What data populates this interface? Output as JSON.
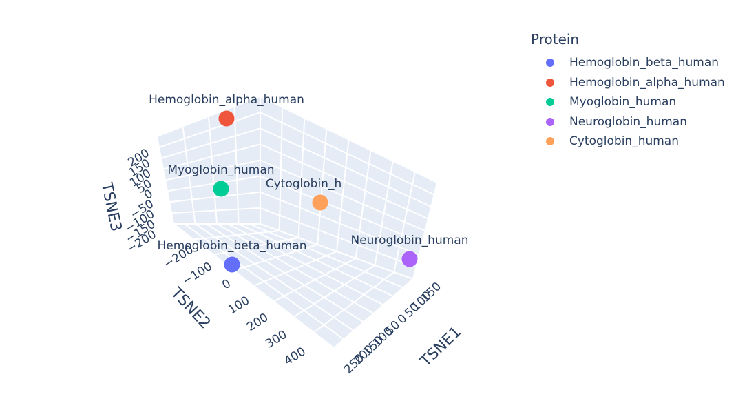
{
  "chart_data": {
    "type": "scatter3d",
    "axes": {
      "x": {
        "label": "TSNE1",
        "ticks": [
          "250",
          "200",
          "150",
          "100",
          "50",
          "0",
          "50",
          "100",
          "150"
        ]
      },
      "y": {
        "label": "TSNE2",
        "ticks": [
          "−200",
          "−100",
          "0",
          "100",
          "200",
          "300",
          "400"
        ]
      },
      "z": {
        "label": "TSNE3",
        "ticks": [
          "200",
          "150",
          "100",
          "50",
          "0",
          "−50",
          "−100",
          "−150",
          "−200"
        ]
      }
    },
    "legend": {
      "title": "Protein",
      "placement": "top-right"
    },
    "series": [
      {
        "name": "Hemoglobin_beta_human",
        "label": "Hemoglobin_beta_human",
        "color": "#636efa"
      },
      {
        "name": "Hemoglobin_alpha_human",
        "label": "Hemoglobin_alpha_human",
        "color": "#ef553b"
      },
      {
        "name": "Myoglobin_human",
        "label": "Myoglobin_human",
        "color": "#00cc96"
      },
      {
        "name": "Neuroglobin_human",
        "label": "Neuroglobin_human",
        "color": "#ab63fa"
      },
      {
        "name": "Cytoglobin_human",
        "label": "Cytoglobin_h",
        "color": "#ffa15a"
      }
    ]
  }
}
